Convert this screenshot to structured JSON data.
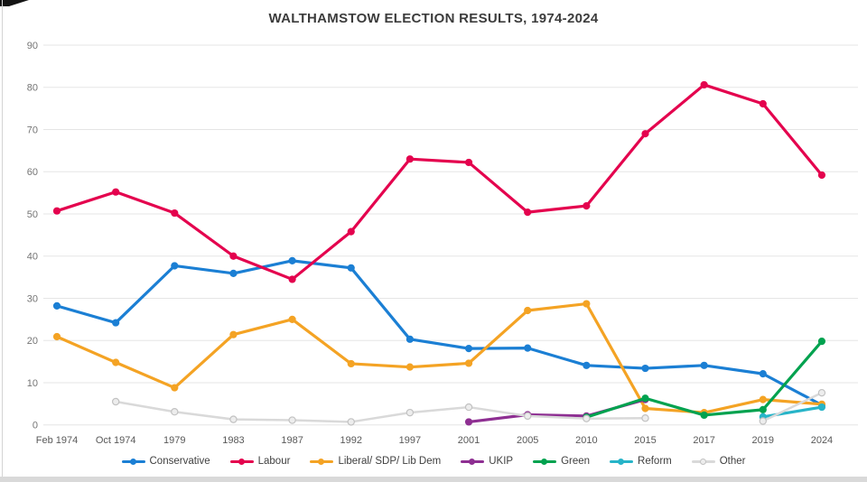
{
  "frame": {
    "title": "WALTHAMSTOW ELECTION RESULTS, 1974-2024"
  },
  "chart_data": {
    "type": "line",
    "title": "WALTHAMSTOW ELECTION RESULTS, 1974-2024",
    "xlabel": "",
    "ylabel": "",
    "ylim": [
      0,
      90
    ],
    "yticks": [
      0,
      10,
      20,
      30,
      40,
      50,
      60,
      70,
      80,
      90
    ],
    "grid": "horizontal",
    "legend_position": "bottom",
    "categories": [
      "Feb 1974",
      "Oct 1974",
      "1979",
      "1983",
      "1987",
      "1992",
      "1997",
      "2001",
      "2005",
      "2010",
      "2015",
      "2017",
      "2019",
      "2024"
    ],
    "series": [
      {
        "name": "Conservative",
        "color": "#1b7fd4",
        "values": [
          28.2,
          24.2,
          37.7,
          35.9,
          38.9,
          37.2,
          20.3,
          18.1,
          18.2,
          14.1,
          13.4,
          14.1,
          12.1,
          4.7
        ]
      },
      {
        "name": "Labour",
        "color": "#e4024e",
        "values": [
          50.7,
          55.2,
          50.2,
          40.0,
          34.5,
          45.8,
          63.0,
          62.2,
          50.4,
          51.9,
          69.0,
          80.6,
          76.1,
          59.2
        ]
      },
      {
        "name": "Liberal/ SDP/ Lib  Dem",
        "color": "#f4a324",
        "values": [
          20.9,
          14.8,
          8.8,
          21.4,
          25.0,
          14.5,
          13.7,
          14.6,
          27.1,
          28.7,
          3.9,
          2.9,
          6.0,
          4.9
        ]
      },
      {
        "name": "UKIP",
        "color": "#8e2f92",
        "values": [
          null,
          null,
          null,
          null,
          null,
          null,
          null,
          0.7,
          2.4,
          2.1,
          6.0,
          null,
          null,
          null
        ]
      },
      {
        "name": "Green",
        "color": "#00a24f",
        "values": [
          null,
          null,
          null,
          null,
          null,
          null,
          null,
          null,
          null,
          1.8,
          6.3,
          2.3,
          3.6,
          19.8
        ]
      },
      {
        "name": "Reform",
        "color": "#27b4c8",
        "values": [
          null,
          null,
          null,
          null,
          null,
          null,
          null,
          null,
          null,
          null,
          null,
          null,
          1.9,
          4.2
        ]
      },
      {
        "name": "Other",
        "color": "#d9d9d9",
        "marker_fill": "#ededed",
        "marker_stroke": "#c2c2c2",
        "values": [
          null,
          5.5,
          3.1,
          1.3,
          1.1,
          0.7,
          2.9,
          4.2,
          2.1,
          1.5,
          1.6,
          null,
          0.9,
          7.6
        ]
      }
    ]
  }
}
